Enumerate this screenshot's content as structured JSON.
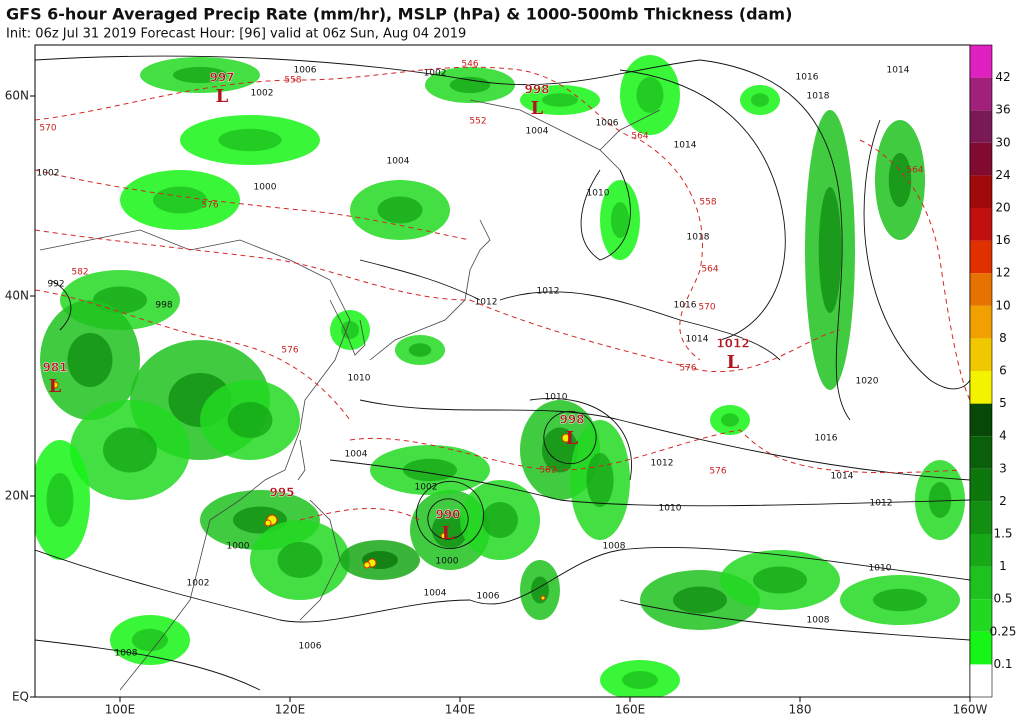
{
  "header": {
    "title": "GFS 6-hour Averaged Precip Rate (mm/hr), MSLP (hPa) & 1000-500mb Thickness (dam)",
    "subtitle": "Init: 06z Jul 31 2019   Forecast Hour: [96]   valid at 06z Sun, Aug 04 2019"
  },
  "map": {
    "lon_labels": [
      "100E",
      "120E",
      "140E",
      "160E",
      "180",
      "160W"
    ],
    "lat_labels": [
      "60N",
      "40N",
      "20N",
      "EQ"
    ],
    "lows": [
      "997",
      "998",
      "981",
      "1012",
      "998",
      "990",
      "995"
    ],
    "isobar_labels": [
      "1006",
      "1002",
      "1002",
      "1004",
      "1006",
      "1016",
      "1014",
      "1018",
      "1014",
      "1010",
      "1018",
      "1012",
      "1016",
      "1014",
      "1020",
      "1016",
      "1014",
      "1012",
      "1010",
      "1012",
      "1010",
      "1008",
      "1004",
      "1002",
      "1000",
      "1004",
      "1006",
      "1002",
      "1000",
      "1008",
      "1006",
      "1010",
      "1008",
      "1002",
      "992",
      "998",
      "1000",
      "1010",
      "1012",
      "1004"
    ],
    "thickness_labels": [
      "558",
      "570",
      "576",
      "582",
      "564",
      "558",
      "564",
      "570",
      "576",
      "576",
      "552",
      "546",
      "564",
      "582",
      "576"
    ]
  },
  "colorbar": {
    "labels": [
      "0.1",
      "0.25",
      "0.5",
      "1",
      "1.5",
      "2",
      "3",
      "4",
      "5",
      "6",
      "8",
      "10",
      "12",
      "16",
      "20",
      "24",
      "30",
      "36",
      "42"
    ],
    "colors": [
      "#ffffff",
      "#16f516",
      "#22d922",
      "#1ec21e",
      "#17a817",
      "#128f12",
      "#0d760d",
      "#0a600a",
      "#074807",
      "#f3f300",
      "#f0c800",
      "#f0a000",
      "#e67300",
      "#e03000",
      "#c01010",
      "#a00a0a",
      "#800a30",
      "#7a1a55",
      "#a0207a",
      "#e020c0"
    ]
  }
}
